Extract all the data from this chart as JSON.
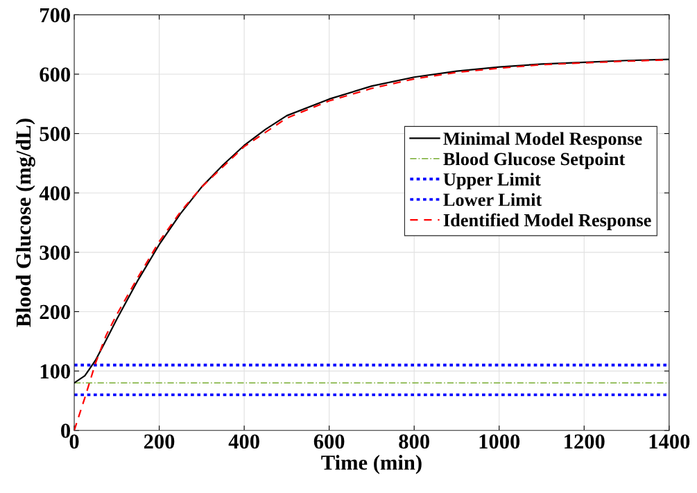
{
  "chart_data": {
    "type": "line",
    "xlabel": "Time (min)",
    "ylabel": "Blood Glucose (mg/dL)",
    "xlim": [
      0,
      1400
    ],
    "xticks": [
      0,
      200,
      400,
      600,
      800,
      1000,
      1200,
      1400
    ],
    "ylim": [
      0,
      700
    ],
    "yticks": [
      0,
      100,
      200,
      300,
      400,
      500,
      600,
      700
    ],
    "grid": true,
    "legend": "right",
    "series": [
      {
        "name": "Minimal Model Response",
        "color": "#000000",
        "line_style": "solid",
        "x": [
          0,
          25,
          50,
          75,
          100,
          150,
          200,
          250,
          300,
          350,
          400,
          450,
          500,
          600,
          700,
          800,
          900,
          1000,
          1100,
          1200,
          1300,
          1400
        ],
        "values": [
          80,
          92,
          118,
          152,
          187,
          253,
          313,
          365,
          410,
          447,
          480,
          507,
          530,
          558,
          580,
          595,
          605,
          612,
          617,
          620,
          623,
          625
        ]
      },
      {
        "name": "Identified Model Response",
        "color": "#ff0000",
        "line_style": "dashed",
        "x": [
          0,
          25,
          50,
          75,
          100,
          150,
          200,
          250,
          300,
          400,
          500,
          600,
          700,
          800,
          900,
          1000,
          1100,
          1200,
          1300,
          1400
        ],
        "values": [
          0,
          55,
          113,
          160,
          195,
          258,
          318,
          368,
          410,
          478,
          526,
          555,
          576,
          592,
          603,
          610,
          616,
          619,
          622,
          624
        ]
      }
    ],
    "ref_lines": [
      {
        "axis": "y",
        "value": 80,
        "label": "Blood Glucose Setpoint",
        "color": "#77ac30",
        "line_style": "dashdot"
      },
      {
        "axis": "y",
        "value": 110,
        "label": "Upper Limit",
        "color": "#0000ff",
        "line_style": "dotted"
      },
      {
        "axis": "y",
        "value": 60,
        "label": "Lower Limit",
        "color": "#0000ff",
        "line_style": "dotted"
      }
    ]
  }
}
